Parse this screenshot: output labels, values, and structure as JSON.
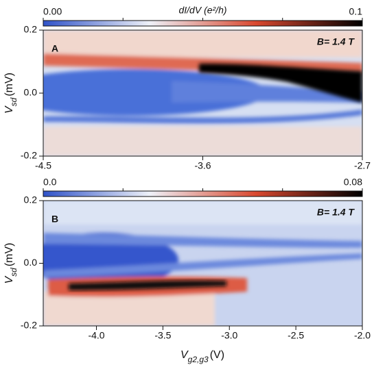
{
  "chart_data": [
    {
      "type": "heatmap",
      "panel_label": "A",
      "annotation": "B= 1.4 T",
      "colorbar_title": "dI/dV (e²/h)",
      "colormap": [
        "#2f52c8",
        "#eef1f8",
        "#d9482f",
        "#000000"
      ],
      "clim": [
        0,
        0.1
      ],
      "cticks": [
        {
          "value": 0,
          "label": "0.00"
        },
        0.1
      ],
      "xlim": [
        -4.5,
        -2.7
      ],
      "xticks": [
        -4.5,
        -3.6,
        -2.7
      ],
      "ylim": [
        -0.2,
        0.2
      ],
      "yticks": [
        -0.2,
        {
          "value": 0,
          "label": "0.0"
        },
        0.2
      ],
      "ylabel": {
        "symbol": "V",
        "subscript": "sd",
        "unit": "(mV)"
      }
    },
    {
      "type": "heatmap",
      "panel_label": "B",
      "annotation": "B= 1.4 T",
      "colormap": [
        "#2f52c8",
        "#eef1f8",
        "#d9482f",
        "#000000"
      ],
      "clim": [
        0,
        0.08
      ],
      "cticks": [
        {
          "value": 0,
          "label": "0.0"
        },
        0.08
      ],
      "xlim": [
        -4.4,
        -2.0
      ],
      "xticks": [
        {
          "value": -4,
          "label": "-4.0"
        },
        -3.5,
        {
          "value": -3,
          "label": "-3.0"
        },
        -2.5,
        {
          "value": -2,
          "label": "-2.0"
        }
      ],
      "ylim": [
        -0.2,
        0.2
      ],
      "yticks": [
        -0.2,
        {
          "value": 0,
          "label": "0.0"
        },
        0.2
      ],
      "ylabel": {
        "symbol": "V",
        "subscript": "sd",
        "unit": "(mV)"
      },
      "xlabel": {
        "symbol": "V",
        "subscript": "g2,g3",
        "unit": "(V)"
      }
    }
  ]
}
